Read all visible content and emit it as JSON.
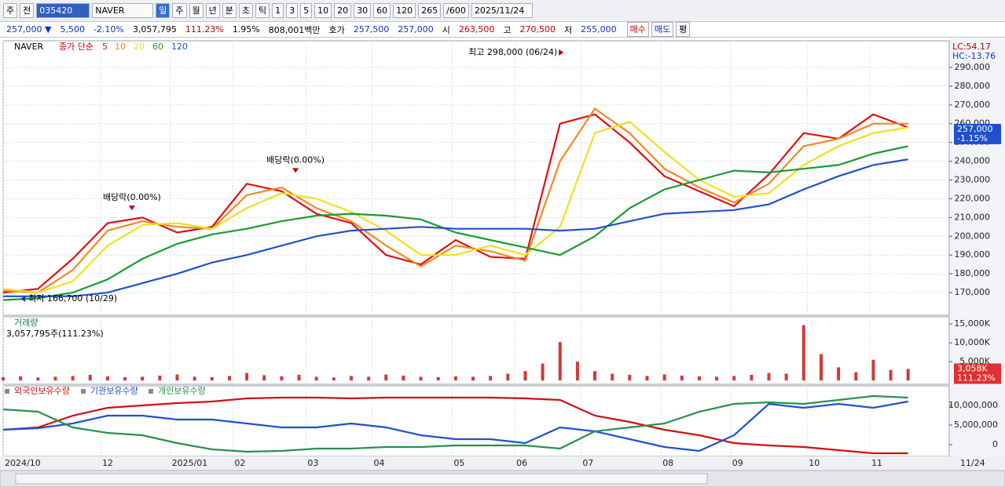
{
  "toolbar": {
    "items": [
      "주",
      "전",
      "035420",
      "NAVER",
      "일",
      "주",
      "월",
      "년",
      "분",
      "초",
      "틱",
      "1",
      "3",
      "5",
      "10",
      "20",
      "30",
      "60",
      "120",
      "265",
      "/600",
      "2025/11/24"
    ]
  },
  "quote": {
    "items": [
      {
        "text": "257,000 ▼",
        "color": "#1030c0"
      },
      {
        "text": "5,500",
        "color": "#1030c0"
      },
      {
        "text": "-2.10%",
        "color": "#1030c0"
      },
      {
        "text": "3,057,795",
        "color": "#000000"
      },
      {
        "text": "111.23%",
        "color": "#c00000"
      },
      {
        "text": "1.95%",
        "color": "#000000"
      },
      {
        "text": "808,001백만",
        "color": "#000000"
      },
      {
        "text": "호가",
        "color": "#000000"
      },
      {
        "text": "257,500",
        "color": "#1030c0"
      },
      {
        "text": "257,000",
        "color": "#1030c0"
      },
      {
        "text": "시",
        "color": "#000000"
      },
      {
        "text": "263,500",
        "color": "#c00000"
      },
      {
        "text": "고",
        "color": "#000000"
      },
      {
        "text": "270,500",
        "color": "#c00000"
      },
      {
        "text": "저",
        "color": "#000000"
      },
      {
        "text": "255,000",
        "color": "#1030c0"
      }
    ],
    "buttons": [
      "매수",
      "매도",
      "평"
    ]
  },
  "chart_data": [
    {
      "type": "line",
      "title": "NAVER",
      "subtitle": "종가 단순",
      "corner_labels": [
        "LC:54.17",
        "HC:-13.76"
      ],
      "xlim": [
        0,
        270
      ],
      "ylim": [
        157900,
        304200
      ],
      "yticks": [
        {
          "value": 170000,
          "label": "170,000"
        },
        {
          "value": 180000,
          "label": "180,000"
        },
        {
          "value": 190000,
          "label": "190,000"
        },
        {
          "value": 200000,
          "label": "200,000"
        },
        {
          "value": 210000,
          "label": "210,000"
        },
        {
          "value": 220000,
          "label": "220,000"
        },
        {
          "value": 230000,
          "label": "230,000"
        },
        {
          "value": 240000,
          "label": "240,000"
        },
        {
          "value": 250000,
          "label": "250,000"
        },
        {
          "value": 260000,
          "label": "260,000"
        },
        {
          "value": 270000,
          "label": "270,000"
        },
        {
          "value": 280000,
          "label": "280,000"
        },
        {
          "value": 290000,
          "label": "290,000"
        }
      ],
      "grid": true,
      "x": [
        0,
        10,
        20,
        30,
        40,
        50,
        60,
        70,
        80,
        90,
        100,
        110,
        120,
        130,
        140,
        150,
        160,
        170,
        180,
        190,
        200,
        210,
        220,
        230,
        240,
        250,
        260
      ],
      "series": [
        {
          "name": "5",
          "color": "#e01010",
          "values": [
            170000,
            172000,
            188000,
            207000,
            210000,
            202000,
            205000,
            228000,
            224000,
            212000,
            207000,
            190000,
            185000,
            198000,
            189000,
            188000,
            260000,
            265000,
            250000,
            232000,
            224000,
            216000,
            233000,
            255000,
            252000,
            265000,
            258000
          ]
        },
        {
          "name": "10",
          "color": "#f08a20",
          "values": [
            171000,
            170000,
            182000,
            203000,
            208000,
            205000,
            204000,
            222000,
            226000,
            215000,
            208000,
            195000,
            184000,
            195000,
            192000,
            187000,
            240000,
            268000,
            255000,
            236000,
            226000,
            218000,
            228000,
            248000,
            252000,
            260000,
            260000
          ]
        },
        {
          "name": "20",
          "color": "#f0e020",
          "values": [
            172000,
            170000,
            176000,
            195000,
            206000,
            207000,
            204000,
            215000,
            223000,
            220000,
            213000,
            203000,
            190000,
            190000,
            195000,
            190000,
            205000,
            255000,
            261000,
            245000,
            230000,
            221000,
            223000,
            238000,
            248000,
            255000,
            258000
          ]
        },
        {
          "name": "60",
          "color": "#1a9a30",
          "values": [
            166000,
            167000,
            170000,
            177000,
            188000,
            196000,
            201000,
            204000,
            208000,
            211000,
            212000,
            211000,
            209000,
            202000,
            198000,
            194000,
            190000,
            200000,
            215000,
            225000,
            230000,
            235000,
            234000,
            236000,
            238000,
            244000,
            248000
          ]
        },
        {
          "name": "120",
          "color": "#2050d0",
          "values": [
            168000,
            168000,
            168000,
            170000,
            175000,
            180000,
            186000,
            190000,
            195000,
            200000,
            203000,
            204000,
            205000,
            204000,
            204000,
            204000,
            203000,
            204000,
            208000,
            212000,
            213000,
            214000,
            217000,
            225000,
            232000,
            238000,
            241000
          ]
        }
      ],
      "annotations": [
        {
          "text": "최고 298,000 (06/24)",
          "x": 161,
          "y": 298000,
          "side": "left",
          "color": "#c00000"
        },
        {
          "text": "최저 166,700 (10/29)",
          "x": 5,
          "y": 166700,
          "side": "right",
          "color": "#1030c0"
        },
        {
          "text": "배당락(0.00%)",
          "x": 84,
          "y": 233000,
          "side": "top",
          "color": "#c00000"
        },
        {
          "text": "배당락(0.00%)",
          "x": 37,
          "y": 213000,
          "side": "top",
          "color": "#c00000"
        }
      ],
      "last_tag": {
        "value": 257000,
        "label": "257,000"
      },
      "last_tag_sub": "-1.15%"
    },
    {
      "type": "bar",
      "title": "거래량",
      "subtitle": "3,057,795주(111.23%)",
      "color": "#d03a3a",
      "xlim": [
        0,
        270
      ],
      "ylim": [
        -1000000,
        16900000
      ],
      "yticks": [
        {
          "value": 5000000,
          "label": "5,000K"
        },
        {
          "value": 10000000,
          "label": "10,000K"
        },
        {
          "value": 15000000,
          "label": "15,000K"
        }
      ],
      "x": [
        0,
        5,
        10,
        15,
        20,
        25,
        30,
        35,
        40,
        45,
        50,
        55,
        60,
        65,
        70,
        75,
        80,
        85,
        90,
        95,
        100,
        105,
        110,
        115,
        120,
        125,
        130,
        135,
        140,
        145,
        150,
        155,
        160,
        165,
        170,
        175,
        180,
        185,
        190,
        195,
        200,
        205,
        210,
        215,
        220,
        225,
        230,
        235,
        240,
        245,
        250,
        255,
        260
      ],
      "values": [
        900000,
        1100000,
        800000,
        1000000,
        1200000,
        1500000,
        1100000,
        900000,
        1000000,
        1300000,
        1600000,
        1000000,
        900000,
        1200000,
        2000000,
        1400000,
        1100000,
        1500000,
        1000000,
        800000,
        1200000,
        1000000,
        1600000,
        1300000,
        1000000,
        900000,
        1100000,
        1000000,
        1200000,
        1800000,
        2500000,
        4500000,
        10200000,
        5000000,
        2500000,
        1800000,
        1500000,
        1200000,
        1600000,
        1300000,
        1100000,
        1000000,
        1200000,
        1500000,
        2000000,
        1800000,
        14700000,
        7000000,
        3500000,
        2200000,
        5500000,
        2800000,
        3057795
      ],
      "last_tag": {
        "value": 3058000,
        "label": "3,058K"
      },
      "last_tag_sub": "111.23%"
    },
    {
      "type": "line",
      "xlim": [
        0,
        270
      ],
      "ylim": [
        -3000000,
        15000000
      ],
      "yticks": [
        {
          "value": 10000000,
          "label": "10,000,000"
        },
        {
          "value": 5000000,
          "label": "5,000,000"
        },
        0
      ],
      "xticks": [
        {
          "value": 0,
          "label": "2024/10"
        },
        {
          "value": 28,
          "label": "12"
        },
        {
          "value": 48,
          "label": "2025/01"
        },
        {
          "value": 66,
          "label": "02"
        },
        {
          "value": 87,
          "label": "03"
        },
        {
          "value": 106,
          "label": "04"
        },
        {
          "value": 129,
          "label": "05"
        },
        {
          "value": 147,
          "label": "06"
        },
        {
          "value": 166,
          "label": "07"
        },
        {
          "value": 189,
          "label": "08"
        },
        {
          "value": 209,
          "label": "09"
        },
        {
          "value": 231,
          "label": "10"
        },
        {
          "value": 249,
          "label": "11"
        }
      ],
      "end_label": "11/24",
      "x": [
        0,
        10,
        20,
        30,
        40,
        50,
        60,
        70,
        80,
        90,
        100,
        110,
        120,
        130,
        140,
        150,
        160,
        170,
        180,
        190,
        200,
        210,
        220,
        230,
        240,
        250,
        260
      ],
      "series": [
        {
          "name": "외국인보유수량",
          "color": "#d01010",
          "values": [
            3800000,
            4400000,
            7400000,
            9400000,
            10000000,
            10600000,
            11000000,
            11800000,
            12000000,
            12000000,
            11800000,
            12000000,
            12000000,
            12000000,
            12000000,
            11800000,
            11400000,
            7400000,
            5800000,
            3800000,
            2400000,
            400000,
            -200000,
            -600000,
            -1400000,
            -2200000,
            -2200000
          ]
        },
        {
          "name": "기관보유수량",
          "color": "#2050d0",
          "values": [
            3800000,
            4200000,
            5400000,
            7400000,
            7400000,
            6400000,
            6400000,
            5400000,
            4400000,
            4400000,
            5400000,
            4400000,
            2400000,
            1400000,
            1400000,
            400000,
            4400000,
            3400000,
            1400000,
            -600000,
            -1600000,
            2400000,
            10400000,
            9400000,
            10400000,
            9400000,
            11000000
          ]
        },
        {
          "name": "개인보유수량",
          "color": "#2a9050",
          "values": [
            9000000,
            8400000,
            4400000,
            3000000,
            2400000,
            400000,
            -1200000,
            -1800000,
            -1600000,
            -1000000,
            -1000000,
            -600000,
            -600000,
            -200000,
            -200000,
            -200000,
            -1000000,
            3400000,
            4400000,
            5400000,
            8400000,
            10400000,
            10800000,
            10400000,
            11400000,
            12400000,
            12000000
          ]
        }
      ]
    }
  ]
}
